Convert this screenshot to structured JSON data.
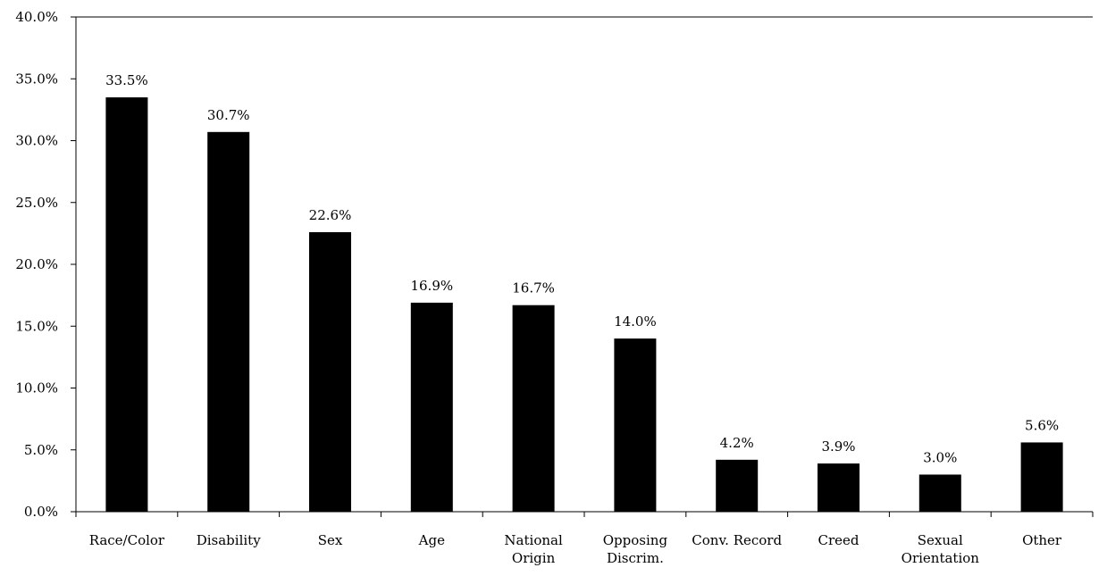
{
  "chart_data": {
    "type": "bar",
    "title": "",
    "xlabel": "",
    "ylabel": "",
    "categories": [
      [
        "Race/Color"
      ],
      [
        "Disability"
      ],
      [
        "Sex"
      ],
      [
        "Age"
      ],
      [
        "National",
        "Origin"
      ],
      [
        "Opposing",
        "Discrim."
      ],
      [
        "Conv. Record"
      ],
      [
        "Creed"
      ],
      [
        "Sexual",
        "Orientation"
      ],
      [
        "Other"
      ]
    ],
    "values": [
      33.5,
      30.7,
      22.6,
      16.9,
      16.7,
      14.0,
      4.2,
      3.9,
      3.0,
      5.6
    ],
    "data_labels": [
      "33.5%",
      "30.7%",
      "22.6%",
      "16.9%",
      "16.7%",
      "14.0%",
      "4.2%",
      "3.9%",
      "3.0%",
      "5.6%"
    ],
    "ylim": [
      0,
      40
    ],
    "yticks": [
      0,
      5,
      10,
      15,
      20,
      25,
      30,
      35,
      40
    ],
    "ytick_labels": [
      "0.0%",
      "5.0%",
      "10.0%",
      "15.0%",
      "20.0%",
      "25.0%",
      "30.0%",
      "35.0%",
      "40.0%"
    ],
    "grid": false,
    "legend": "none",
    "bar_color": "#000000"
  }
}
